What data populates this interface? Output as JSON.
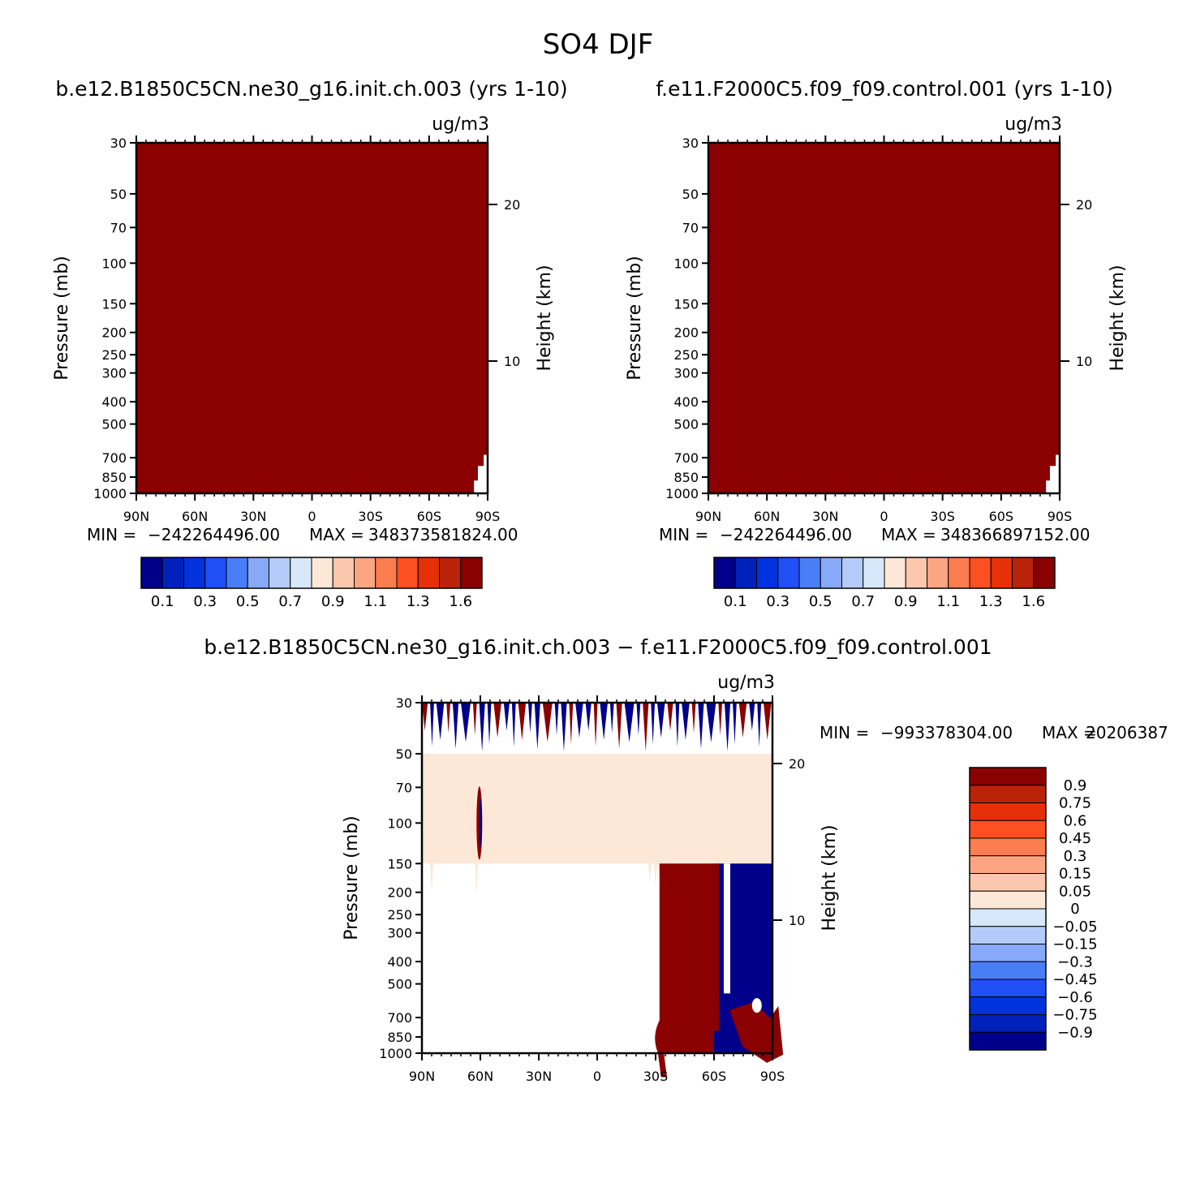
{
  "title": "SO4 DJF",
  "stat_labels": {
    "min": "MIN =",
    "max": "MAX ="
  },
  "colors": {
    "fill_colors_16": [
      "#00008b",
      "#0022bb",
      "#0033dd",
      "#1f4ff5",
      "#4a7ef7",
      "#87a9f8",
      "#b4cbfa",
      "#d8e8fb",
      "#fde8d8",
      "#fcc8ad",
      "#fca582",
      "#fc7d4f",
      "#fc4f22",
      "#e53008",
      "#b9230a",
      "#8b0000"
    ],
    "fill_colors_18": [
      "#00008b",
      "#0022bb",
      "#0033dd",
      "#1f4ff5",
      "#3a66f6",
      "#4a7ef7",
      "#87a9f8",
      "#b4cbfa",
      "#d8e8fb",
      "#fde8d8",
      "#fcc8ad",
      "#fca582",
      "#fc7d4f",
      "#fc4f22",
      "#e53008",
      "#c2280a",
      "#b9230a",
      "#8b0000"
    ]
  },
  "chart_data": [
    {
      "type": "heatmap",
      "title": "b.e12.B1850C5CN.ne30_g16.init.ch.003 (yrs 1-10)",
      "units": "ug/m3",
      "xlabel": "",
      "ylabel": "Pressure (mb)",
      "ylabel_right": "Height (km)",
      "x_ticks": [
        "90N",
        "60N",
        "30N",
        "0",
        "30S",
        "60S",
        "90S"
      ],
      "xlim": [
        90,
        -90
      ],
      "y_ticks": [
        30,
        50,
        70,
        100,
        150,
        200,
        250,
        300,
        400,
        500,
        700,
        850,
        1000
      ],
      "ylim": [
        1000,
        30
      ],
      "y_scale": "log",
      "y_right_ticks": [
        20,
        10
      ],
      "stats": {
        "min": "−242264496.00",
        "max": "348373581824.00"
      },
      "colorbar": {
        "orientation": "horizontal",
        "labels": [
          "0.1",
          "0.3",
          "0.5",
          "0.7",
          "0.9",
          "1.1",
          "1.3",
          "1.6"
        ]
      },
      "dominant_fill": "#8b0000",
      "note_values": "field saturated above top contour level almost everywhere"
    },
    {
      "type": "heatmap",
      "title": "f.e11.F2000C5.f09_f09.control.001 (yrs 1-10)",
      "units": "ug/m3",
      "xlabel": "",
      "ylabel": "Pressure (mb)",
      "ylabel_right": "Height (km)",
      "x_ticks": [
        "90N",
        "60N",
        "30N",
        "0",
        "30S",
        "60S",
        "90S"
      ],
      "xlim": [
        90,
        -90
      ],
      "y_ticks": [
        30,
        50,
        70,
        100,
        150,
        200,
        250,
        300,
        400,
        500,
        700,
        850,
        1000
      ],
      "ylim": [
        1000,
        30
      ],
      "y_scale": "log",
      "y_right_ticks": [
        20,
        10
      ],
      "stats": {
        "min": "−242264496.00",
        "max": "348366897152.00"
      },
      "colorbar": {
        "orientation": "horizontal",
        "labels": [
          "0.1",
          "0.3",
          "0.5",
          "0.7",
          "0.9",
          "1.1",
          "1.3",
          "1.6"
        ]
      },
      "dominant_fill": "#8b0000"
    },
    {
      "type": "heatmap",
      "title": "b.e12.B1850C5CN.ne30_g16.init.ch.003 − f.e11.F2000C5.f09_f09.control.001",
      "units": "ug/m3",
      "xlabel": "",
      "ylabel": "Pressure (mb)",
      "ylabel_right": "Height (km)",
      "x_ticks": [
        "90N",
        "60N",
        "30N",
        "0",
        "30S",
        "60S",
        "90S"
      ],
      "xlim": [
        90,
        -90
      ],
      "y_ticks": [
        30,
        50,
        70,
        100,
        150,
        200,
        250,
        300,
        400,
        500,
        700,
        850,
        1000
      ],
      "ylim": [
        1000,
        30
      ],
      "y_scale": "log",
      "y_right_ticks": [
        20,
        10
      ],
      "stats": {
        "min": "−993378304.00",
        "max": "20206387"
      },
      "colorbar": {
        "orientation": "vertical",
        "labels": [
          "0.9",
          "0.75",
          "0.6",
          "0.45",
          "0.3",
          "0.15",
          "0.05",
          "0",
          "−0.05",
          "−0.15",
          "−0.3",
          "−0.45",
          "−0.6",
          "−0.75",
          "−0.9"
        ]
      },
      "regions": [
        {
          "lat": [
            90,
            -90
          ],
          "p": [
            30,
            50
          ],
          "fill": "alternating #8b0000 / #00008b streaks"
        },
        {
          "lat": [
            90,
            -90
          ],
          "p": [
            50,
            150
          ],
          "fill": "#fde8d8"
        },
        {
          "lat": [
            -32,
            -60
          ],
          "p": [
            150,
            1000
          ],
          "fill": "#8b0000"
        },
        {
          "lat": [
            -60,
            -90
          ],
          "p": [
            150,
            1000
          ],
          "fill": "#00008b"
        }
      ]
    }
  ]
}
